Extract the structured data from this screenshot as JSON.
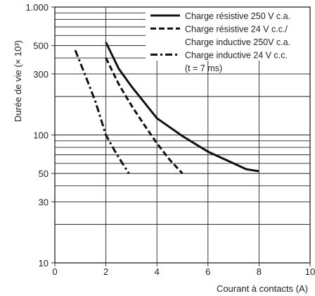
{
  "chart_data": {
    "type": "line",
    "ylabel": "Durée de vie (× 10³)",
    "xlabel": "Courant à contacts (A)",
    "x_scale": "linear",
    "y_scale": "log",
    "xlim": [
      0,
      10
    ],
    "ylim": [
      10,
      1000
    ],
    "grid": true,
    "x_ticks": [
      {
        "value": 0,
        "label": "0"
      },
      {
        "value": 2,
        "label": "2"
      },
      {
        "value": 4,
        "label": "4"
      },
      {
        "value": 6,
        "label": "6"
      },
      {
        "value": 8,
        "label": "8"
      },
      {
        "value": 10,
        "label": "10"
      }
    ],
    "y_ticks": [
      {
        "value": 1000,
        "label": "1.000"
      },
      {
        "value": 500,
        "label": "500"
      },
      {
        "value": 300,
        "label": "300"
      },
      {
        "value": 100,
        "label": "100"
      },
      {
        "value": 50,
        "label": "50"
      },
      {
        "value": 30,
        "label": "30"
      },
      {
        "value": 10,
        "label": "10"
      }
    ],
    "y_grid": [
      10,
      20,
      30,
      40,
      50,
      60,
      70,
      80,
      90,
      100,
      200,
      300,
      400,
      500,
      600,
      700,
      800,
      900,
      1000
    ],
    "x_grid": [
      0,
      2,
      4,
      6,
      8,
      10
    ],
    "legend_position": "top-right",
    "series": [
      {
        "name": "Charge résistive 250 V c.a.",
        "style": "solid",
        "points": [
          [
            2.0,
            530
          ],
          [
            2.5,
            330
          ],
          [
            3.0,
            240
          ],
          [
            3.5,
            180
          ],
          [
            4.0,
            135
          ],
          [
            5.0,
            98
          ],
          [
            6.0,
            74
          ],
          [
            7.0,
            60
          ],
          [
            7.5,
            54
          ],
          [
            8.0,
            52
          ]
        ]
      },
      {
        "name": "Charge résistive 24 V c.c./ Charge inductive 250V c.a.",
        "style": "dashed",
        "points": [
          [
            2.0,
            400
          ],
          [
            2.5,
            250
          ],
          [
            3.0,
            170
          ],
          [
            3.5,
            120
          ],
          [
            4.0,
            86
          ],
          [
            4.5,
            64
          ],
          [
            5.0,
            50
          ]
        ]
      },
      {
        "name": "Charge inductive 24 V c.c. (t = 7 ms)",
        "style": "dashdot",
        "points": [
          [
            0.8,
            460
          ],
          [
            1.2,
            290
          ],
          [
            1.6,
            180
          ],
          [
            2.0,
            100
          ],
          [
            2.4,
            72
          ],
          [
            2.9,
            50
          ]
        ]
      }
    ],
    "legend": [
      {
        "style": "solid",
        "lines": [
          "Charge résistive 250 V c.a."
        ]
      },
      {
        "style": "dashed",
        "lines": [
          "Charge résistive 24 V c.c./",
          "Charge inductive 250V c.a."
        ]
      },
      {
        "style": "dashdot",
        "lines": [
          "Charge inductive 24 V c.c.",
          "(t = 7 ms)"
        ]
      }
    ]
  }
}
